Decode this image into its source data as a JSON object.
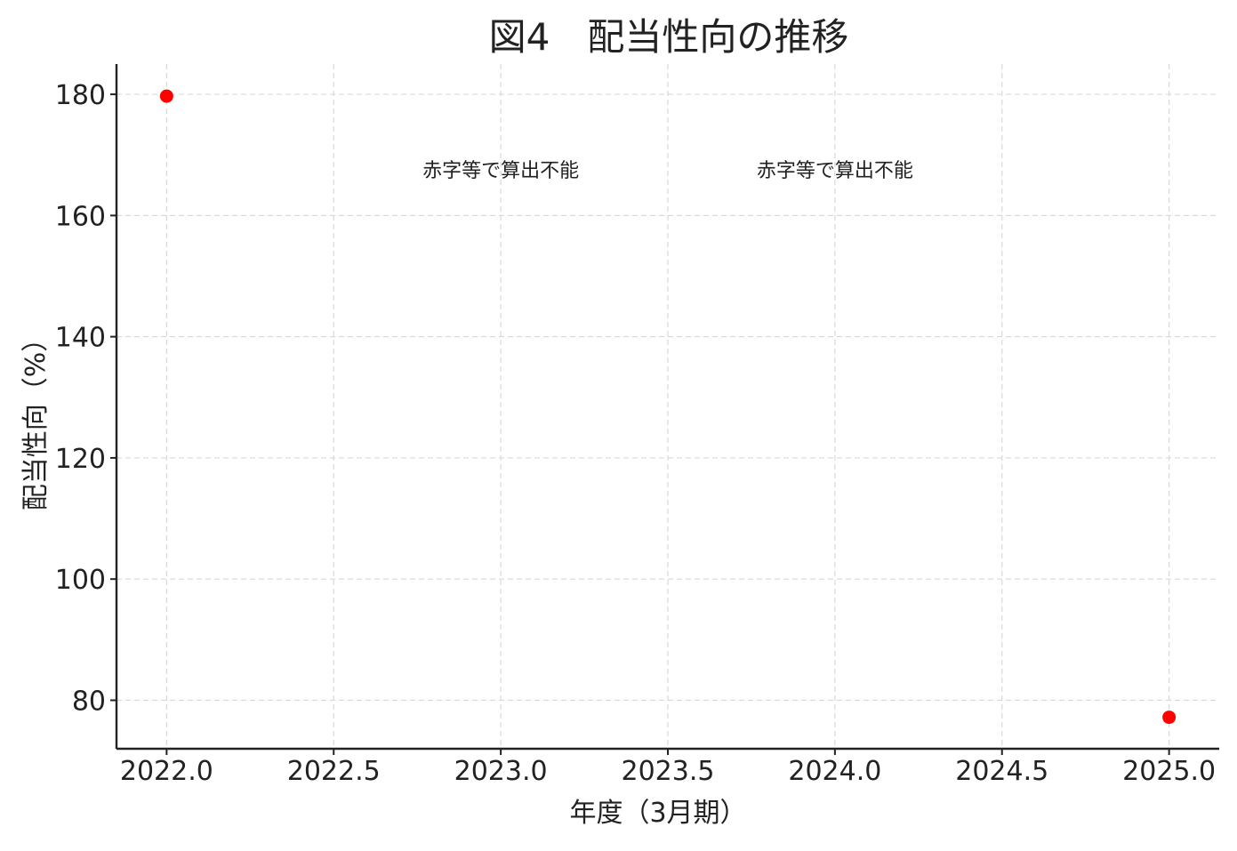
{
  "chart_data": {
    "type": "scatter",
    "title": "図4　配当性向の推移",
    "xlabel": "年度（3月期）",
    "ylabel": "配当性向（%）",
    "xlim": [
      2021.85,
      2025.15
    ],
    "ylim": [
      72,
      185
    ],
    "xticks": [
      2022.0,
      2022.5,
      2023.0,
      2023.5,
      2024.0,
      2024.5,
      2025.0
    ],
    "xtick_labels": [
      "2022.0",
      "2022.5",
      "2023.0",
      "2023.5",
      "2024.0",
      "2024.5",
      "2025.0"
    ],
    "yticks": [
      80,
      100,
      120,
      140,
      160,
      180
    ],
    "ytick_labels": [
      "80",
      "100",
      "120",
      "140",
      "160",
      "180"
    ],
    "grid": true,
    "series": [
      {
        "color": "#ff0000",
        "points": [
          {
            "x": 2022,
            "y": 179.7
          },
          {
            "x": 2025,
            "y": 77.2
          }
        ]
      }
    ],
    "annotations": [
      {
        "x": 2023,
        "y": 167.5,
        "text": "赤字等で算出不能"
      },
      {
        "x": 2024,
        "y": 167.5,
        "text": "赤字等で算出不能"
      }
    ]
  }
}
